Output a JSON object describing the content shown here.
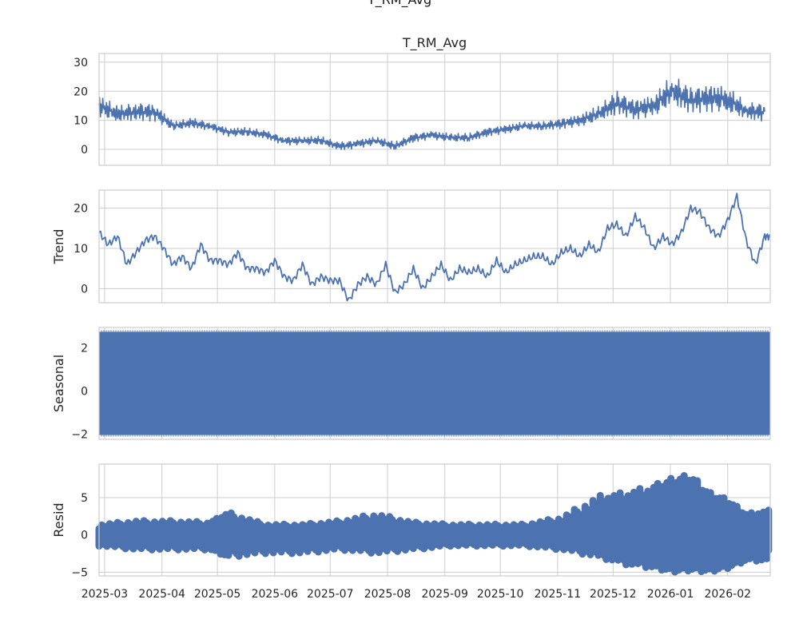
{
  "figure": {
    "suptitle": "T_RM_Avg"
  },
  "colors": {
    "series": "#4c72b0",
    "grid": "#cccccc",
    "spine": "#cccccc",
    "text": "#262626"
  },
  "chart_data": [
    {
      "type": "line",
      "panel": "observed",
      "title": "T_RM_Avg",
      "ylabel": "",
      "ylim": [
        -5.5,
        33
      ],
      "yticks": [
        0,
        10,
        20,
        30
      ],
      "xlim": [
        "2025-02-26",
        "2026-02-24"
      ],
      "xticks": [
        "2025-03",
        "2025-04",
        "2025-05",
        "2025-06",
        "2025-07",
        "2025-08",
        "2025-09",
        "2025-10",
        "2025-11",
        "2025-12",
        "2026-01",
        "2026-02"
      ],
      "grid": true,
      "series": [
        {
          "x": [
            "2025-02-26",
            "2025-03-08",
            "2025-03-18",
            "2025-03-28",
            "2025-04-07",
            "2025-04-17",
            "2025-04-27",
            "2025-05-07",
            "2025-05-17",
            "2025-05-27",
            "2025-06-06",
            "2025-06-16",
            "2025-06-26",
            "2025-07-06",
            "2025-07-16",
            "2025-07-26",
            "2025-08-05",
            "2025-08-15",
            "2025-08-25",
            "2025-09-04",
            "2025-09-14",
            "2025-09-24",
            "2025-10-04",
            "2025-10-14",
            "2025-10-24",
            "2025-11-03",
            "2025-11-13",
            "2025-11-23",
            "2025-12-03",
            "2025-12-13",
            "2025-12-23",
            "2026-01-02",
            "2026-01-12",
            "2026-01-22",
            "2026-02-01",
            "2026-02-11",
            "2026-02-21"
          ],
          "values": [
            15,
            12,
            13,
            13,
            8,
            9,
            8,
            6,
            6,
            5,
            3,
            3,
            3,
            1,
            2,
            3,
            1,
            4,
            5,
            4,
            4,
            6,
            7,
            8,
            8,
            9,
            10,
            12,
            16,
            14,
            15,
            20,
            17,
            18,
            17,
            13,
            13
          ]
        }
      ]
    },
    {
      "type": "line",
      "panel": "trend",
      "title": "",
      "ylabel": "Trend",
      "ylim": [
        -3.5,
        24.5
      ],
      "yticks": [
        0,
        10,
        20
      ],
      "xlim": [
        "2025-02-26",
        "2026-02-24"
      ],
      "xticks": [
        "2025-03",
        "2025-04",
        "2025-05",
        "2025-06",
        "2025-07",
        "2025-08",
        "2025-09",
        "2025-10",
        "2025-11",
        "2025-12",
        "2026-01",
        "2026-02"
      ],
      "grid": true,
      "series": [
        {
          "x": [
            "2025-02-26",
            "2025-03-03",
            "2025-03-08",
            "2025-03-13",
            "2025-03-18",
            "2025-03-23",
            "2025-03-28",
            "2025-04-02",
            "2025-04-07",
            "2025-04-12",
            "2025-04-17",
            "2025-04-22",
            "2025-04-27",
            "2025-05-02",
            "2025-05-07",
            "2025-05-12",
            "2025-05-17",
            "2025-05-22",
            "2025-05-27",
            "2025-06-01",
            "2025-06-06",
            "2025-06-11",
            "2025-06-16",
            "2025-06-21",
            "2025-06-26",
            "2025-07-01",
            "2025-07-06",
            "2025-07-11",
            "2025-07-16",
            "2025-07-21",
            "2025-07-26",
            "2025-07-31",
            "2025-08-05",
            "2025-08-10",
            "2025-08-15",
            "2025-08-20",
            "2025-08-25",
            "2025-08-30",
            "2025-09-04",
            "2025-09-09",
            "2025-09-14",
            "2025-09-19",
            "2025-09-24",
            "2025-09-29",
            "2025-10-04",
            "2025-10-09",
            "2025-10-14",
            "2025-10-19",
            "2025-10-24",
            "2025-10-29",
            "2025-11-03",
            "2025-11-08",
            "2025-11-13",
            "2025-11-18",
            "2025-11-23",
            "2025-11-28",
            "2025-12-03",
            "2025-12-08",
            "2025-12-13",
            "2025-12-18",
            "2025-12-23",
            "2025-12-28",
            "2026-01-02",
            "2026-01-07",
            "2026-01-12",
            "2026-01-17",
            "2026-01-22",
            "2026-01-27",
            "2026-02-01",
            "2026-02-06",
            "2026-02-11",
            "2026-02-16",
            "2026-02-21",
            "2026-02-24"
          ],
          "values": [
            14,
            11,
            13,
            6,
            9,
            12,
            13,
            10,
            6,
            8,
            5,
            11,
            7,
            7,
            6,
            9,
            5,
            5,
            4,
            7,
            3,
            2,
            6,
            1,
            3,
            2,
            2,
            -3,
            1,
            3,
            1,
            6,
            -1,
            1,
            5,
            0,
            3,
            6,
            2,
            5,
            4,
            5,
            3,
            7,
            4,
            6,
            7,
            8,
            8,
            6,
            9,
            10,
            8,
            11,
            9,
            15,
            16,
            13,
            18,
            15,
            10,
            13,
            11,
            14,
            20,
            19,
            15,
            13,
            17,
            23,
            12,
            6,
            13,
            13
          ]
        }
      ]
    },
    {
      "type": "line",
      "panel": "seasonal",
      "title": "",
      "ylabel": "Seasonal",
      "ylim": [
        -2.25,
        2.95
      ],
      "yticks": [
        -2,
        0,
        2
      ],
      "xlim": [
        "2025-02-26",
        "2026-02-24"
      ],
      "xticks": [
        "2025-03",
        "2025-04",
        "2025-05",
        "2025-06",
        "2025-07",
        "2025-08",
        "2025-09",
        "2025-10",
        "2025-11",
        "2025-12",
        "2026-01",
        "2026-02"
      ],
      "grid": true,
      "series": [
        {
          "x_range": [
            "2025-02-26",
            "2026-02-24"
          ],
          "value_range": [
            -2.05,
            2.75
          ]
        }
      ]
    },
    {
      "type": "scatter",
      "panel": "resid",
      "title": "",
      "ylabel": "Resid",
      "ylim": [
        -5.5,
        9.5
      ],
      "yticks": [
        -5,
        0,
        5
      ],
      "xlim": [
        "2025-02-26",
        "2026-02-24"
      ],
      "xticks": [
        "2025-03",
        "2025-04",
        "2025-05",
        "2025-06",
        "2025-07",
        "2025-08",
        "2025-09",
        "2025-10",
        "2025-11",
        "2025-12",
        "2026-01",
        "2026-02"
      ],
      "grid": true,
      "series": [
        {
          "x": [
            "2025-02-26",
            "2025-03-18",
            "2025-04-07",
            "2025-04-27",
            "2025-05-07",
            "2025-05-27",
            "2025-06-16",
            "2025-07-06",
            "2025-07-26",
            "2025-08-15",
            "2025-09-04",
            "2025-09-24",
            "2025-10-14",
            "2025-11-03",
            "2025-11-23",
            "2025-12-08",
            "2025-12-23",
            "2026-01-02",
            "2026-01-12",
            "2026-01-22",
            "2026-02-01",
            "2026-02-11",
            "2026-02-24"
          ],
          "high": [
            1.5,
            2.0,
            2.0,
            1.8,
            3.2,
            1.5,
            1.5,
            2.0,
            3.0,
            1.8,
            1.5,
            1.5,
            1.5,
            2.5,
            5.5,
            6.0,
            7.0,
            8.0,
            8.5,
            6.0,
            5.0,
            3.0,
            3.5
          ],
          "low": [
            -1.5,
            -2.0,
            -2.0,
            -2.0,
            -3.0,
            -2.5,
            -2.5,
            -2.0,
            -2.5,
            -2.0,
            -1.5,
            -1.5,
            -1.5,
            -2.0,
            -3.0,
            -4.0,
            -4.5,
            -5.0,
            -4.8,
            -5.0,
            -4.5,
            -3.5,
            -3.5
          ]
        }
      ]
    }
  ]
}
